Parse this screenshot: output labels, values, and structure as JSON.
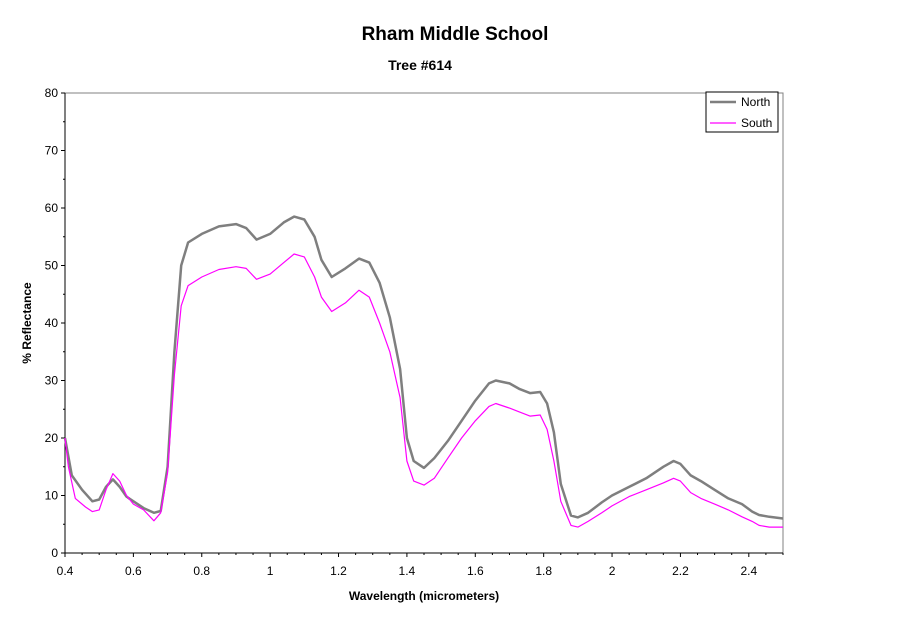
{
  "chart_data": {
    "type": "line",
    "title": "Rham Middle School",
    "subtitle": "Tree #614",
    "xlabel": "Wavelength (micrometers)",
    "ylabel": "% Reflectance",
    "xlim": [
      0.4,
      2.5
    ],
    "ylim": [
      0,
      80
    ],
    "x_ticks": [
      "0.4",
      "0.6",
      "0.8",
      "1",
      "1.2",
      "1.4",
      "1.6",
      "1.8",
      "2",
      "2.2",
      "2.4"
    ],
    "y_ticks": [
      "0",
      "10",
      "20",
      "30",
      "40",
      "50",
      "60",
      "70",
      "80"
    ],
    "grid": false,
    "legend_position": "top-right",
    "series": [
      {
        "name": "North",
        "color": "#7f7f7f",
        "points": [
          [
            0.4,
            20.0
          ],
          [
            0.42,
            13.5
          ],
          [
            0.45,
            11.0
          ],
          [
            0.48,
            9.0
          ],
          [
            0.5,
            9.3
          ],
          [
            0.52,
            11.5
          ],
          [
            0.54,
            12.8
          ],
          [
            0.56,
            11.5
          ],
          [
            0.58,
            9.8
          ],
          [
            0.6,
            9.0
          ],
          [
            0.63,
            7.8
          ],
          [
            0.66,
            7.0
          ],
          [
            0.68,
            7.3
          ],
          [
            0.7,
            15.0
          ],
          [
            0.72,
            35.0
          ],
          [
            0.74,
            50.0
          ],
          [
            0.76,
            54.0
          ],
          [
            0.8,
            55.5
          ],
          [
            0.85,
            56.8
          ],
          [
            0.9,
            57.2
          ],
          [
            0.93,
            56.5
          ],
          [
            0.96,
            54.5
          ],
          [
            1.0,
            55.5
          ],
          [
            1.04,
            57.5
          ],
          [
            1.07,
            58.5
          ],
          [
            1.1,
            58.0
          ],
          [
            1.13,
            55.0
          ],
          [
            1.15,
            51.0
          ],
          [
            1.18,
            48.0
          ],
          [
            1.22,
            49.5
          ],
          [
            1.26,
            51.2
          ],
          [
            1.29,
            50.5
          ],
          [
            1.32,
            47.0
          ],
          [
            1.35,
            41.0
          ],
          [
            1.38,
            32.0
          ],
          [
            1.4,
            20.0
          ],
          [
            1.42,
            16.0
          ],
          [
            1.45,
            14.8
          ],
          [
            1.48,
            16.5
          ],
          [
            1.52,
            19.5
          ],
          [
            1.56,
            23.0
          ],
          [
            1.6,
            26.5
          ],
          [
            1.64,
            29.5
          ],
          [
            1.66,
            30.0
          ],
          [
            1.7,
            29.5
          ],
          [
            1.73,
            28.5
          ],
          [
            1.76,
            27.8
          ],
          [
            1.79,
            28.0
          ],
          [
            1.81,
            26.0
          ],
          [
            1.83,
            21.0
          ],
          [
            1.85,
            12.0
          ],
          [
            1.88,
            6.5
          ],
          [
            1.9,
            6.2
          ],
          [
            1.93,
            7.0
          ],
          [
            1.97,
            8.8
          ],
          [
            2.0,
            10.0
          ],
          [
            2.05,
            11.5
          ],
          [
            2.1,
            13.0
          ],
          [
            2.15,
            15.0
          ],
          [
            2.18,
            16.0
          ],
          [
            2.2,
            15.5
          ],
          [
            2.23,
            13.5
          ],
          [
            2.26,
            12.5
          ],
          [
            2.3,
            11.0
          ],
          [
            2.34,
            9.5
          ],
          [
            2.38,
            8.5
          ],
          [
            2.41,
            7.2
          ],
          [
            2.43,
            6.6
          ],
          [
            2.46,
            6.3
          ],
          [
            2.5,
            6.0
          ]
        ]
      },
      {
        "name": "South",
        "color": "#ff00ff",
        "points": [
          [
            0.4,
            20.0
          ],
          [
            0.41,
            15.0
          ],
          [
            0.43,
            9.5
          ],
          [
            0.46,
            8.0
          ],
          [
            0.48,
            7.2
          ],
          [
            0.5,
            7.5
          ],
          [
            0.52,
            11.0
          ],
          [
            0.54,
            13.8
          ],
          [
            0.56,
            12.5
          ],
          [
            0.58,
            10.0
          ],
          [
            0.6,
            8.5
          ],
          [
            0.63,
            7.5
          ],
          [
            0.66,
            5.6
          ],
          [
            0.68,
            7.0
          ],
          [
            0.7,
            14.0
          ],
          [
            0.72,
            31.0
          ],
          [
            0.74,
            43.0
          ],
          [
            0.76,
            46.5
          ],
          [
            0.8,
            48.0
          ],
          [
            0.85,
            49.3
          ],
          [
            0.9,
            49.8
          ],
          [
            0.93,
            49.5
          ],
          [
            0.96,
            47.6
          ],
          [
            1.0,
            48.5
          ],
          [
            1.04,
            50.5
          ],
          [
            1.07,
            52.0
          ],
          [
            1.1,
            51.5
          ],
          [
            1.13,
            48.0
          ],
          [
            1.15,
            44.5
          ],
          [
            1.18,
            42.0
          ],
          [
            1.22,
            43.5
          ],
          [
            1.26,
            45.7
          ],
          [
            1.29,
            44.5
          ],
          [
            1.32,
            40.0
          ],
          [
            1.35,
            35.0
          ],
          [
            1.38,
            27.0
          ],
          [
            1.4,
            16.0
          ],
          [
            1.42,
            12.5
          ],
          [
            1.45,
            11.8
          ],
          [
            1.48,
            13.0
          ],
          [
            1.52,
            16.5
          ],
          [
            1.56,
            20.0
          ],
          [
            1.6,
            23.0
          ],
          [
            1.64,
            25.5
          ],
          [
            1.66,
            26.0
          ],
          [
            1.7,
            25.2
          ],
          [
            1.73,
            24.5
          ],
          [
            1.76,
            23.8
          ],
          [
            1.79,
            24.0
          ],
          [
            1.81,
            21.5
          ],
          [
            1.83,
            16.0
          ],
          [
            1.85,
            9.0
          ],
          [
            1.88,
            4.8
          ],
          [
            1.9,
            4.5
          ],
          [
            1.93,
            5.5
          ],
          [
            1.97,
            7.0
          ],
          [
            2.0,
            8.2
          ],
          [
            2.05,
            9.8
          ],
          [
            2.1,
            11.0
          ],
          [
            2.15,
            12.2
          ],
          [
            2.18,
            13.0
          ],
          [
            2.2,
            12.5
          ],
          [
            2.23,
            10.5
          ],
          [
            2.26,
            9.5
          ],
          [
            2.3,
            8.5
          ],
          [
            2.34,
            7.5
          ],
          [
            2.38,
            6.3
          ],
          [
            2.41,
            5.5
          ],
          [
            2.43,
            4.8
          ],
          [
            2.46,
            4.5
          ],
          [
            2.5,
            4.5
          ]
        ]
      }
    ]
  }
}
